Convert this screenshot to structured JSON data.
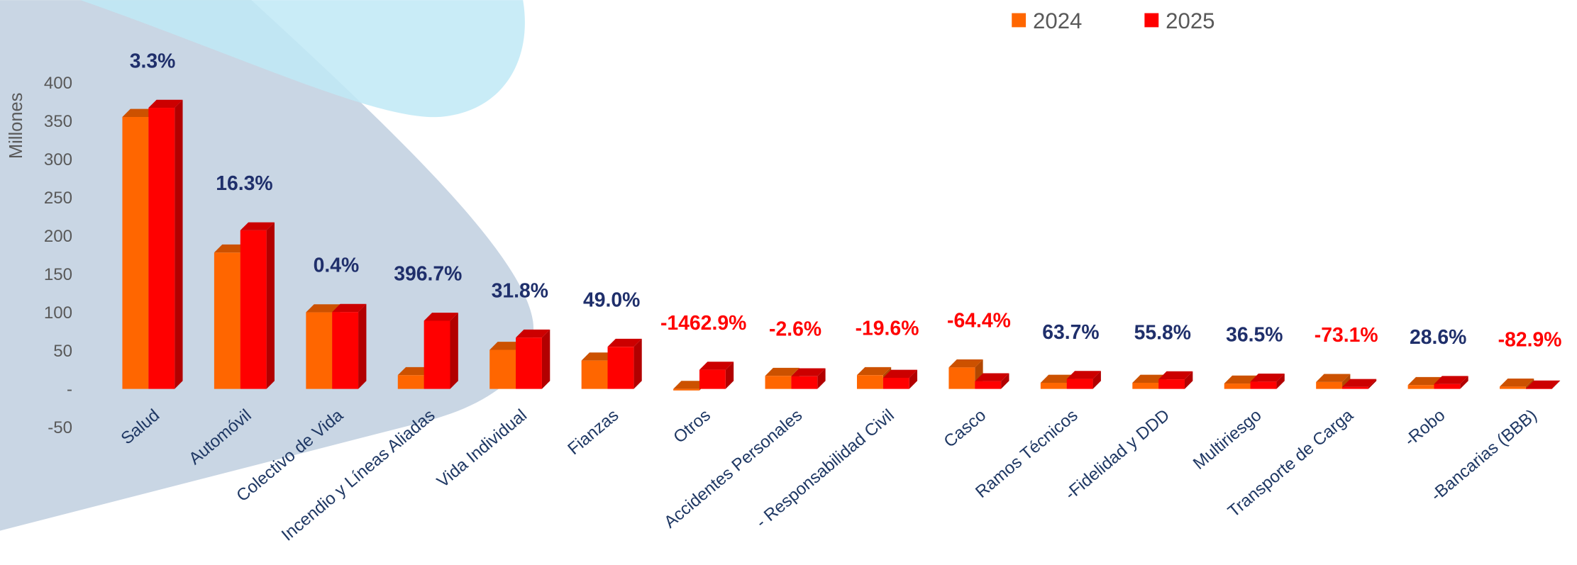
{
  "chart_data": {
    "type": "bar3d",
    "y_label": "Millones",
    "categories": [
      "Salud",
      "Automóvil",
      "Colectivo de Vida",
      "Incendio y Líneas Aliadas",
      "Vida Individual",
      "Fianzas",
      "Otros",
      "Accidentes Personales",
      "- Responsabilidad Civil",
      "Casco",
      "Ramos Técnicos",
      "-Fidelidad y DDD",
      "Multiriesgo",
      "Transporte de Carga",
      "-Robo",
      "-Bancarias (BBB)"
    ],
    "series": [
      {
        "name": "2024",
        "color": "#ff6600",
        "values": [
          355,
          178,
          100,
          18,
          51,
          37,
          -2,
          17,
          18,
          28,
          8,
          8,
          7,
          9,
          5,
          3
        ]
      },
      {
        "name": "2025",
        "color": "#ff0000",
        "values": [
          367,
          207,
          100.4,
          89,
          67,
          55,
          25,
          16.5,
          14.5,
          10,
          13,
          12.5,
          9.5,
          2.5,
          6.4,
          0.5
        ]
      }
    ],
    "growth": [
      3.3,
      16.3,
      0.4,
      396.7,
      31.8,
      49.0,
      -1462.9,
      -2.6,
      -19.6,
      -64.4,
      63.7,
      55.8,
      36.5,
      -73.1,
      28.6,
      -82.9
    ],
    "growth_labels": [
      "3.3%",
      "16.3%",
      "0.4%",
      "396.7%",
      "31.8%",
      "49.0%",
      "-1462.9%",
      "-2.6%",
      "-19.6%",
      "-64.4%",
      "63.7%",
      "55.8%",
      "36.5%",
      "-73.1%",
      "28.6%",
      "-82.9%"
    ],
    "ylim": [
      -50,
      400
    ],
    "yticks": [
      -50,
      {
        "value": 0,
        "label": "-"
      },
      50,
      100,
      150,
      200,
      250,
      300,
      350,
      400
    ],
    "legend": "top-right"
  }
}
